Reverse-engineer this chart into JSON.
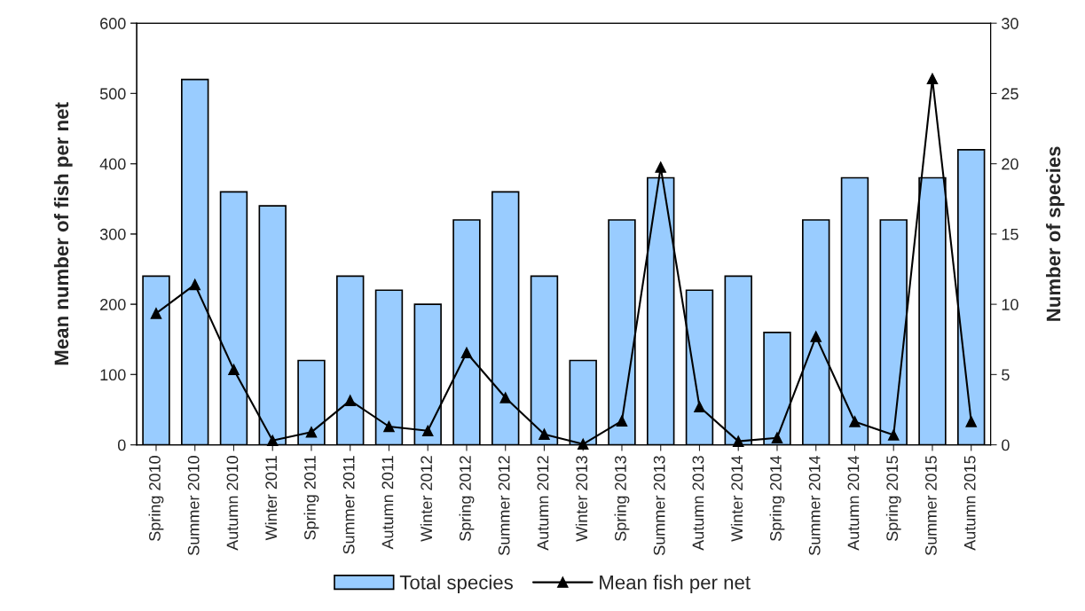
{
  "chart_data": {
    "type": "bar",
    "categories": [
      "Spring 2010",
      "Summer 2010",
      "Autumn 2010",
      "Winter 2011",
      "Spring 2011",
      "Summer 2011",
      "Autumn 2011",
      "Winter 2012",
      "Spring 2012",
      "Summer 2012",
      "Autumn 2012",
      "Winter 2013",
      "Spring 2013",
      "Summer 2013",
      "Autumn 2013",
      "Winter 2014",
      "Spring 2014",
      "Summer 2014",
      "Autumn 2014",
      "Spring 2015",
      "Summer 2015",
      "Autumn 2015"
    ],
    "series": [
      {
        "name": "Total species",
        "axis": "y2",
        "color": "#99ccff",
        "values": [
          12,
          26,
          18,
          17,
          6,
          12,
          11,
          10,
          16,
          18,
          12,
          6,
          16,
          19,
          11,
          12,
          8,
          16,
          19,
          16,
          19,
          21
        ]
      },
      {
        "name": "Mean fish per net",
        "type": "line",
        "axis": "y",
        "color": "#000000",
        "marker": "triangle",
        "line_style": "solid",
        "values": [
          187,
          228,
          107,
          6,
          18,
          63,
          26,
          20,
          131,
          67,
          15,
          1,
          34,
          395,
          54,
          5,
          10,
          154,
          33,
          14,
          521,
          33
        ]
      }
    ],
    "ylabel": "Mean number of fish per net",
    "y2label": "Number of species",
    "ylim": [
      0,
      600
    ],
    "yticks": [
      0,
      100,
      200,
      300,
      400,
      500,
      600
    ],
    "y2lim": [
      0,
      30
    ],
    "y2ticks": [
      0,
      5,
      10,
      15,
      20,
      25,
      30
    ],
    "grid": false,
    "legend": "bottom"
  }
}
